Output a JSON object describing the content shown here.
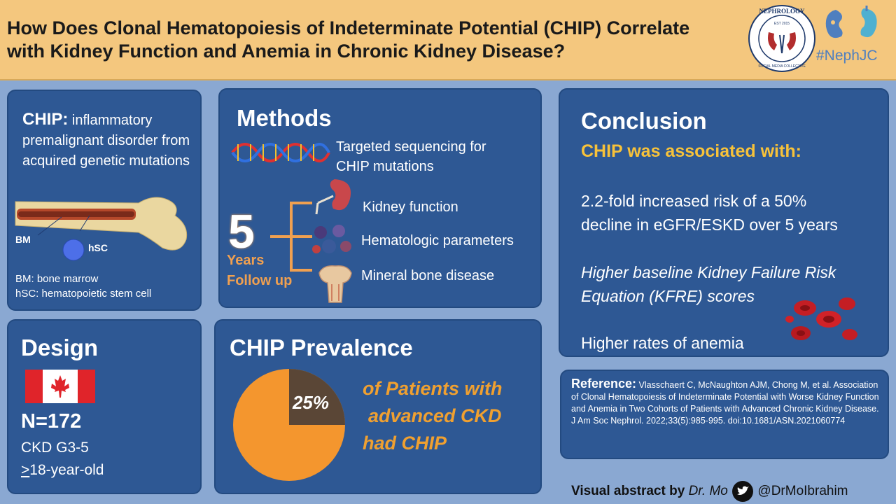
{
  "header": {
    "title_line1": "How Does Clonal Hematopoiesis of Indeterminate Potential (CHIP) Correlate",
    "title_line2": "with Kidney Function and Anemia in Chronic Kidney Disease?",
    "seal_top": "NEPHROLOGY",
    "seal_bottom": "SOCIAL MEDIA COLLECTIVE",
    "seal_est": "EST 2015",
    "hashtag": "#NephJC"
  },
  "chip": {
    "heading": "CHIP:",
    "definition": "inflammatory premalignant disorder from acquired genetic mutations",
    "bm_label": "BM",
    "hsc_label": "hSC",
    "legend_bm": "BM: bone marrow",
    "legend_hsc": "hSC: hematopoietic stem cell"
  },
  "methods": {
    "title": "Methods",
    "sequencing": "Targeted sequencing for CHIP mutations",
    "years_number": "5",
    "years_line1": "Years",
    "years_line2": "Follow up",
    "items": [
      "Kidney function",
      "Hematologic parameters",
      "Mineral bone disease"
    ]
  },
  "conclusion": {
    "title": "Conclusion",
    "subtitle": "CHIP was associated with:",
    "point1_line1": "2.2-fold increased risk of a 50%",
    "point1_line2": "decline in eGFR/ESKD over 5 years",
    "point2_line1": "Higher baseline Kidney Failure Risk",
    "point2_line2": "Equation (KFRE) scores",
    "point3": "Higher rates of anemia"
  },
  "design": {
    "title": "Design",
    "n": "N=172",
    "ckd": "CKD G3-5",
    "age_symbol": ">",
    "age": "18-year-old"
  },
  "prevalence": {
    "title": "CHIP Prevalence",
    "percent_label": "25%",
    "fraction": 0.25,
    "line1": "of Patients with",
    "line2": "advanced CKD",
    "line3": "had CHIP",
    "colors": {
      "slice": "#5a4636",
      "rest": "#f4962e"
    }
  },
  "reference": {
    "label": "Reference:",
    "text": "Vlasschaert C, McNaughton AJM, Chong M, et al. Association of Clonal Hematopoiesis of Indeterminate Potential with Worse Kidney Function and Anemia in Two Cohorts of Patients with Advanced Chronic Kidney Disease. J Am Soc Nephrol. 2022;33(5):985-995. doi:10.1681/ASN.2021060774"
  },
  "footer": {
    "prefix": "Visual abstract by",
    "author": "Dr. Mo",
    "handle": "@DrMoIbrahim"
  },
  "colors": {
    "background": "#8aa8d2",
    "header": "#f4c77e",
    "panel": "#2e5894",
    "accent_yellow": "#f7c23a",
    "accent_orange": "#f0a030"
  }
}
